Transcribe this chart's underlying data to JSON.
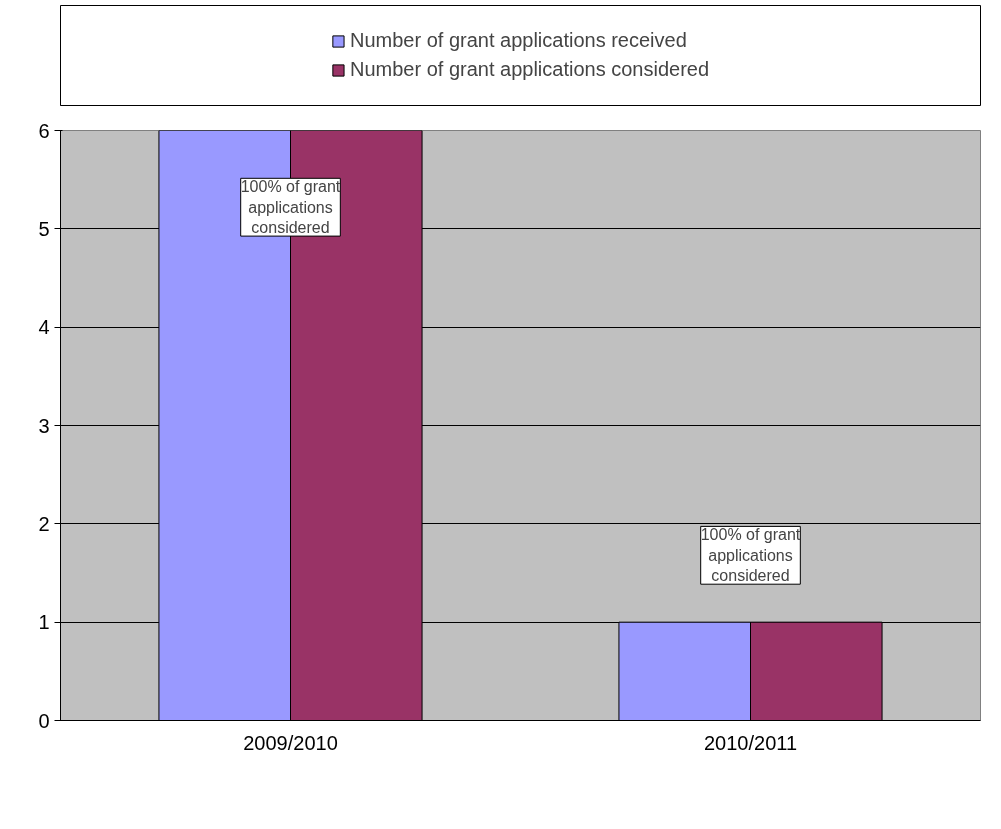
{
  "chart_data": {
    "type": "bar",
    "categories": [
      "2009/2010",
      "2010/2011"
    ],
    "series": [
      {
        "name": "Number of grant applications received",
        "color": "#9999ff",
        "values": [
          6,
          1
        ]
      },
      {
        "name": "Number of grant applications considered",
        "color": "#993366",
        "values": [
          6,
          1
        ]
      }
    ],
    "ylim": [
      0,
      6
    ],
    "yticks": [
      0,
      1,
      2,
      3,
      4,
      5,
      6
    ],
    "grid": "y",
    "legend": "top",
    "annotations": [
      "100% of grant applications considered",
      "100% of grant applications considered"
    ]
  }
}
